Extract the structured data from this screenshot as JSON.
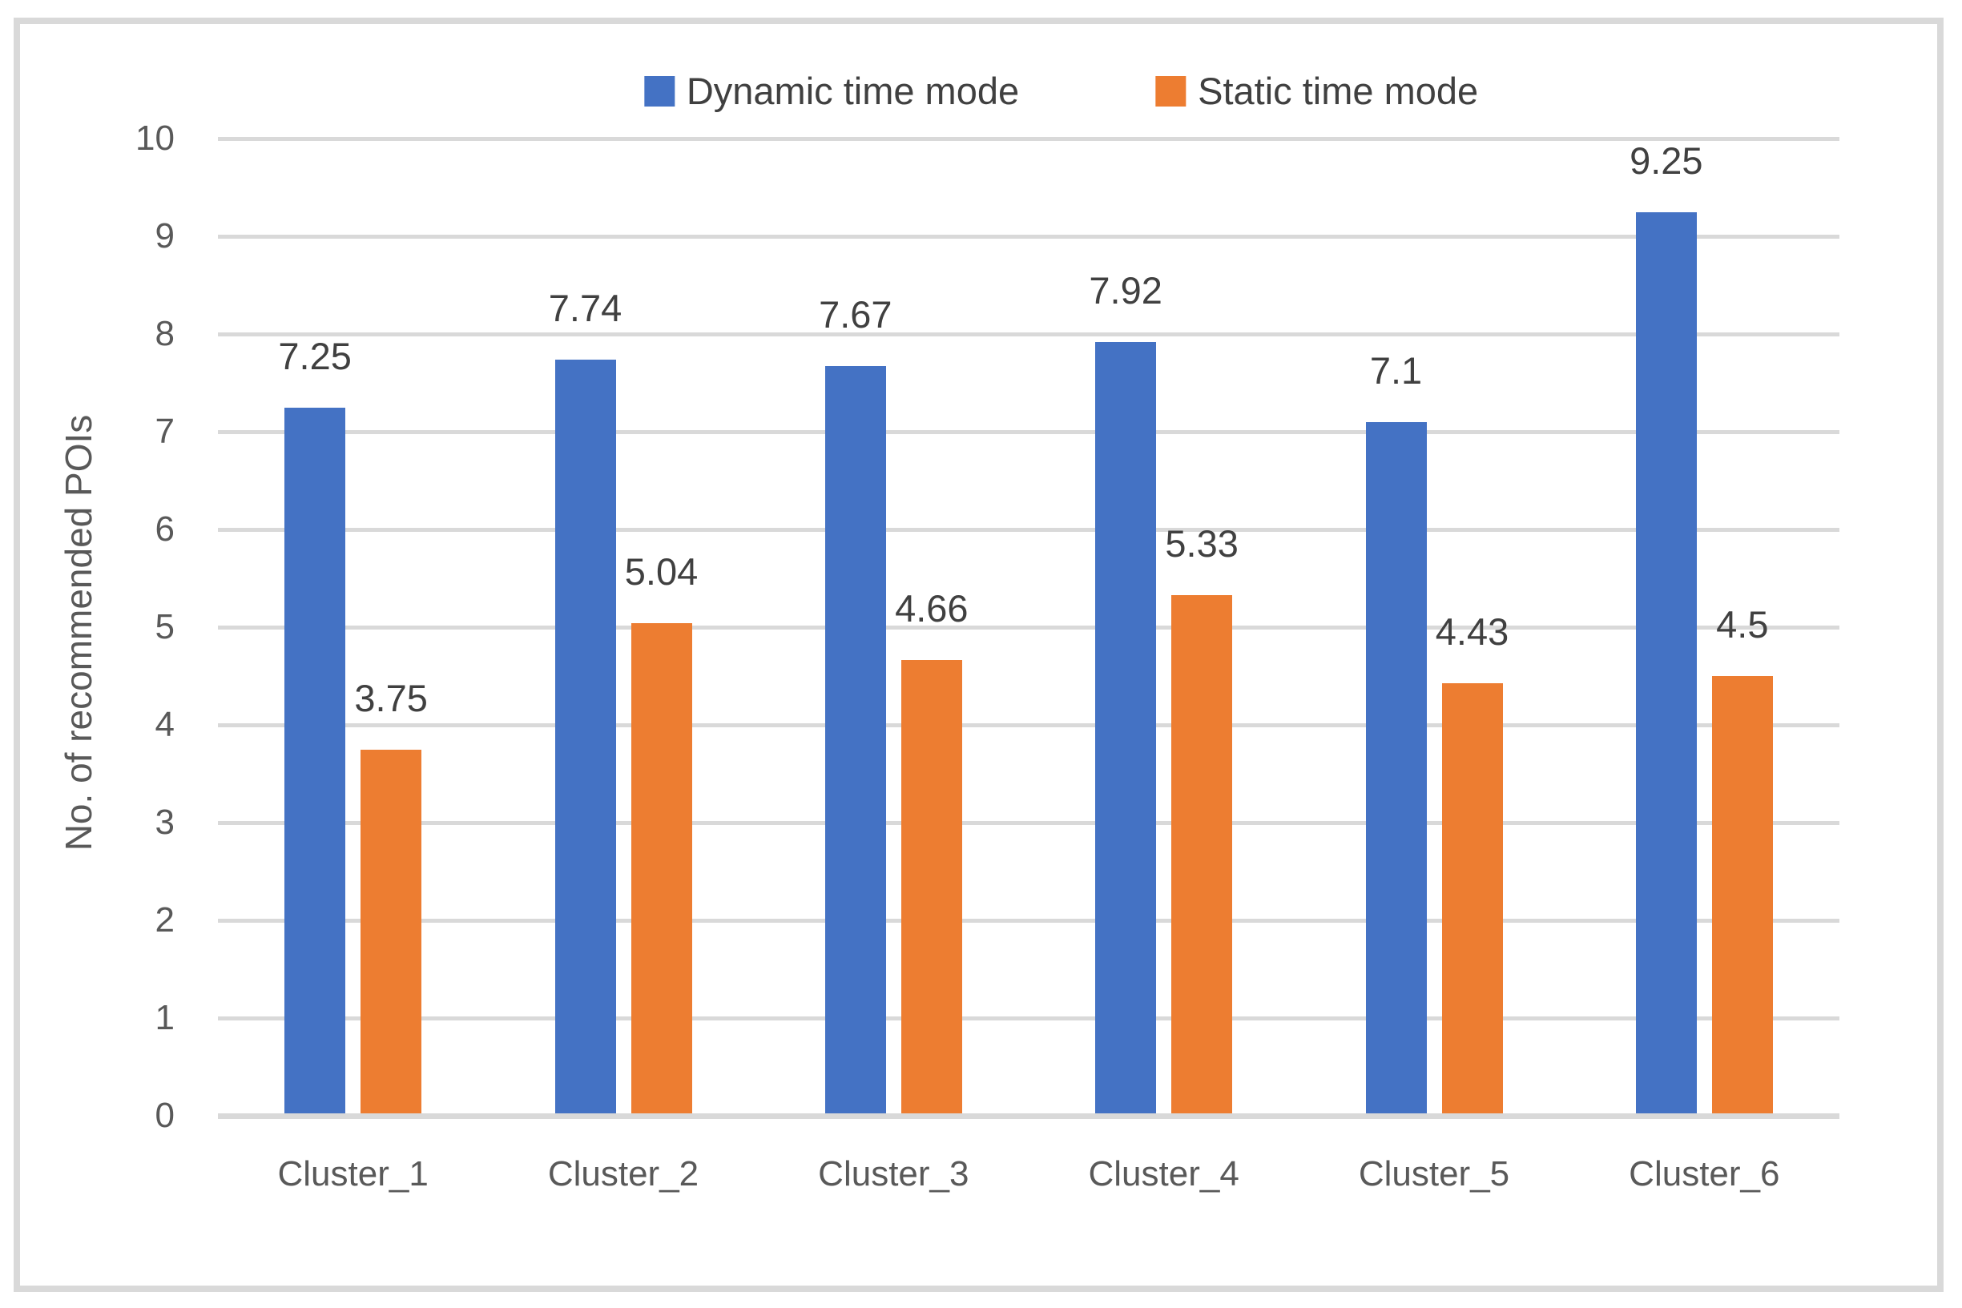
{
  "figure": {
    "background": "#FFFFFF",
    "border_color": "#D9D9D9"
  },
  "chart_data": {
    "type": "bar",
    "title": "",
    "categories": [
      "Cluster_1",
      "Cluster_2",
      "Cluster_3",
      "Cluster_4",
      "Cluster_5",
      "Cluster_6"
    ],
    "series": [
      {
        "name": "Dynamic time mode",
        "color": "#4472C4",
        "values": [
          7.25,
          7.74,
          7.67,
          7.92,
          7.1,
          9.25
        ]
      },
      {
        "name": "Static time mode",
        "color": "#ED7D31",
        "values": [
          3.75,
          5.04,
          4.66,
          5.33,
          4.43,
          4.5
        ]
      }
    ],
    "data_labels": {
      "Dynamic time mode": [
        "7.25",
        "7.74",
        "7.67",
        "7.92",
        "7.1",
        "9.25"
      ],
      "Static time mode": [
        "3.75",
        "5.04",
        "4.66",
        "5.33",
        "4.43",
        "4.5"
      ]
    },
    "xlabel": "",
    "ylabel": "No. of recommended POIs",
    "ylim": [
      0,
      10
    ],
    "yticks": [
      0,
      1,
      2,
      3,
      4,
      5,
      6,
      7,
      8,
      9,
      10
    ],
    "grid": true,
    "legend_position": "top",
    "gridline_color": "#D9D9D9",
    "axis_line_color": "#D9D9D9",
    "axis_text_color": "#595959",
    "data_label_color": "#404040"
  }
}
